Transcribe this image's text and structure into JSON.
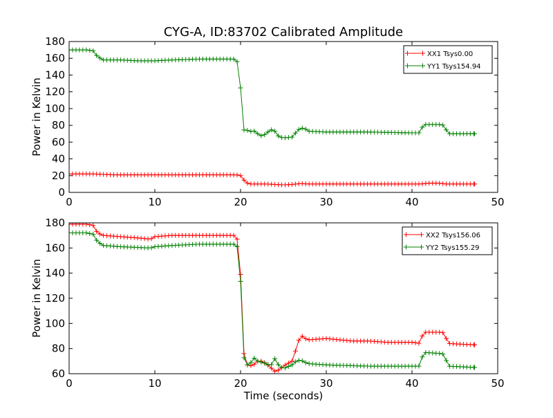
{
  "title": "CYG-A, ID:83702 Calibrated Amplitude",
  "colors": {
    "red": "#ff0000",
    "green": "#008000"
  },
  "chart_data": [
    {
      "type": "line",
      "xlabel": "",
      "ylabel": "Power in Kelvin",
      "xlim": [
        0,
        50
      ],
      "ylim": [
        0,
        180
      ],
      "xticks": [
        0,
        10,
        20,
        30,
        40,
        50
      ],
      "yticks": [
        0,
        20,
        40,
        60,
        80,
        100,
        120,
        140,
        160,
        180
      ],
      "legend_position": "top-right",
      "series": [
        {
          "name": "XX1 Tsys0.00",
          "color": "#ff0000",
          "x": [
            0,
            3,
            5,
            10,
            15,
            19.5,
            20,
            20.3,
            20.6,
            21,
            22,
            23,
            24,
            25,
            26,
            27,
            28,
            30,
            35,
            40,
            41,
            42,
            43,
            44,
            45,
            47.3
          ],
          "y": [
            22,
            22,
            21,
            21,
            21,
            21,
            20,
            16,
            12,
            10,
            10,
            10,
            9.5,
            9,
            9.5,
            10.5,
            10,
            10,
            10,
            10,
            10,
            11,
            11,
            10,
            10,
            10
          ]
        },
        {
          "name": "YY1 Tsys154.94",
          "color": "#008000",
          "x": [
            0,
            1,
            2,
            2.8,
            3.3,
            4,
            6,
            8,
            10,
            12,
            15,
            19.5,
            19.8,
            20.1,
            20.3,
            20.5,
            20.7,
            21,
            21.5,
            22,
            22.5,
            23,
            23.5,
            24,
            24.5,
            25,
            26,
            26.5,
            27,
            27.5,
            28,
            30,
            35,
            40,
            41,
            41.3,
            43.5,
            43.8,
            44.2,
            47.3
          ],
          "y": [
            170,
            170,
            170,
            169,
            162,
            158,
            158,
            157,
            157,
            158,
            159,
            159,
            150,
            112,
            75,
            74,
            75,
            72,
            74,
            70,
            67,
            70,
            75,
            73,
            66,
            65,
            66,
            72,
            77,
            76,
            73,
            72,
            72,
            71,
            71,
            81,
            81,
            79,
            70,
            70
          ]
        }
      ]
    },
    {
      "type": "line",
      "xlabel": "Time (seconds)",
      "ylabel": "Power in Kelvin",
      "xlim": [
        0,
        50
      ],
      "ylim": [
        60,
        180
      ],
      "xticks": [
        0,
        10,
        20,
        30,
        40,
        50
      ],
      "yticks": [
        60,
        80,
        100,
        120,
        140,
        160,
        180
      ],
      "legend_position": "top-right",
      "series": [
        {
          "name": "XX2 Tsys156.06",
          "color": "#ff0000",
          "x": [
            0,
            2,
            2.8,
            3.3,
            4,
            6,
            8,
            9.5,
            10,
            12,
            15,
            19.5,
            19.9,
            20.1,
            20.3,
            20.6,
            21,
            21.5,
            22,
            22.5,
            23,
            23.5,
            24,
            24.5,
            25,
            26,
            26.5,
            27,
            27.5,
            28,
            30,
            33,
            35,
            37,
            40,
            41,
            41.3,
            43.5,
            43.8,
            44.2,
            47.3
          ],
          "y": [
            179,
            179,
            178,
            172,
            170,
            169,
            168,
            167,
            169,
            170,
            170,
            170,
            158,
            120,
            80,
            68,
            66,
            67,
            70,
            70,
            68,
            65,
            62,
            63,
            66,
            70,
            80,
            91,
            88,
            87,
            88,
            86,
            86,
            85,
            85,
            84,
            93,
            93,
            92,
            84,
            83
          ]
        },
        {
          "name": "YY2 Tsys155.29",
          "color": "#008000",
          "x": [
            0,
            2,
            2.8,
            3.3,
            4,
            6,
            9.5,
            10,
            12,
            15,
            19.5,
            19.9,
            20.1,
            20.3,
            20.6,
            21,
            21.5,
            22,
            22.5,
            23,
            23.5,
            24,
            24.5,
            25,
            26,
            26.5,
            27,
            27.5,
            28,
            30,
            35,
            40,
            41,
            41.3,
            43.5,
            43.8,
            44.2,
            47.3
          ],
          "y": [
            172,
            172,
            171,
            165,
            162,
            161,
            160,
            161,
            162,
            163,
            163,
            155,
            112,
            75,
            68,
            66,
            73,
            70,
            69,
            68,
            66,
            72,
            66,
            64,
            67,
            70,
            71,
            69,
            68,
            67,
            66,
            66,
            66,
            77,
            76,
            75,
            66,
            65
          ]
        }
      ]
    }
  ]
}
